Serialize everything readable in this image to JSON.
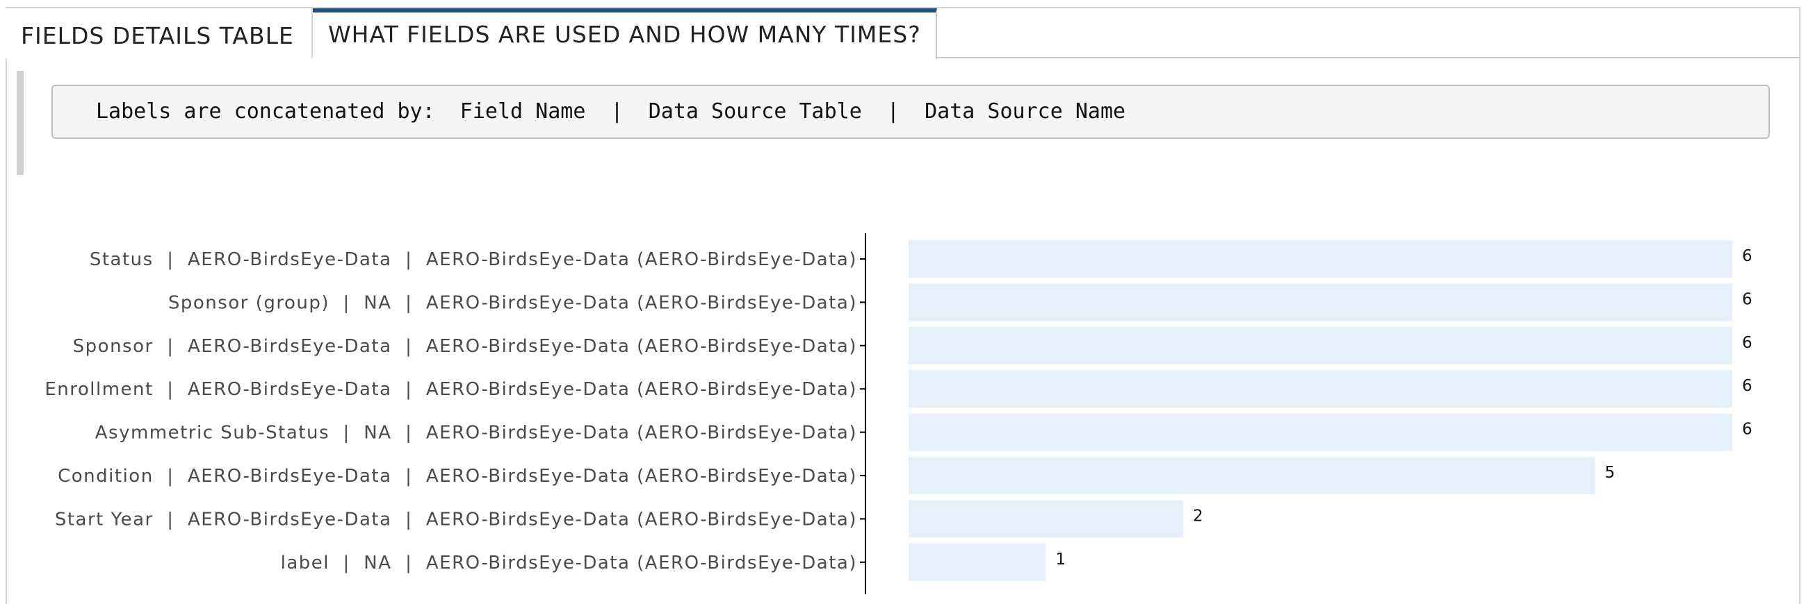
{
  "tabs": [
    {
      "label": "FIELDS DETAILS TABLE",
      "active": false
    },
    {
      "label": "WHAT FIELDS ARE USED AND HOW MANY TIMES?",
      "active": true
    }
  ],
  "note": {
    "prefix": "Labels are concatenated by:",
    "parts": [
      "Field Name",
      "Data Source Table",
      "Data Source Name"
    ],
    "separator": "|"
  },
  "colors": {
    "bar": "#e6f0fa",
    "active_tab_accent": "#1f4f7a",
    "axis": "#000000"
  },
  "chart_data": {
    "type": "bar",
    "orientation": "horizontal",
    "categories": [
      "Status  |  AERO-BirdsEye-Data  |  AERO-BirdsEye-Data (AERO-BirdsEye-Data)",
      "Sponsor (group)  |  NA  |  AERO-BirdsEye-Data (AERO-BirdsEye-Data)",
      "Sponsor  |  AERO-BirdsEye-Data  |  AERO-BirdsEye-Data (AERO-BirdsEye-Data)",
      "Enrollment  |  AERO-BirdsEye-Data  |  AERO-BirdsEye-Data (AERO-BirdsEye-Data)",
      "Asymmetric Sub-Status  |  NA  |  AERO-BirdsEye-Data (AERO-BirdsEye-Data)",
      "Condition  |  AERO-BirdsEye-Data  |  AERO-BirdsEye-Data (AERO-BirdsEye-Data)",
      "Start Year  |  AERO-BirdsEye-Data  |  AERO-BirdsEye-Data (AERO-BirdsEye-Data)",
      "label  |  NA  |  AERO-BirdsEye-Data (AERO-BirdsEye-Data)"
    ],
    "values": [
      6,
      6,
      6,
      6,
      6,
      5,
      2,
      1
    ],
    "data_labels": [
      "6",
      "6",
      "6",
      "6",
      "6",
      "5",
      "2",
      "1"
    ],
    "xlim": [
      0,
      6
    ],
    "grid": false,
    "legend": "none"
  }
}
